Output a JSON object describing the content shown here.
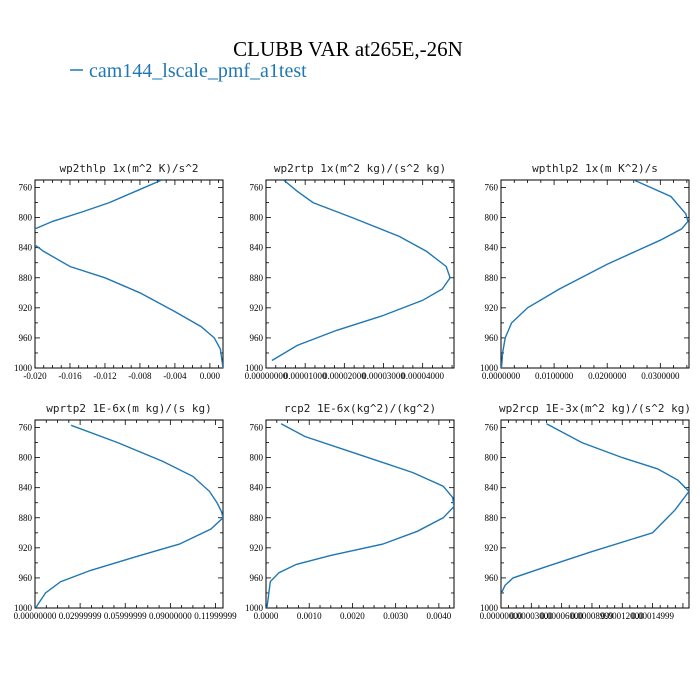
{
  "figure": {
    "title": "CLUBB VAR at265E,-26N",
    "legend_label": "cam144_lscale_pmf_a1test",
    "series_color": "#1f77b4"
  },
  "chart_data": [
    {
      "type": "line",
      "title": "wp2thlp  1x(m^2 K)/s^2",
      "xlim": [
        -0.02,
        0.0015
      ],
      "ylim": [
        1000,
        750
      ],
      "xticks": [
        -0.02,
        -0.016,
        -0.012,
        -0.008,
        -0.004,
        0.0
      ],
      "xtick_labels": [
        "-0.020",
        "-0.016",
        "-0.012",
        "-0.008",
        "-0.004",
        "0.000"
      ],
      "yticks": [
        760,
        800,
        840,
        880,
        920,
        960,
        1000
      ],
      "ytick_labels": [
        "760",
        "800",
        "840",
        "880",
        "920",
        "960",
        "1000"
      ],
      "series": [
        {
          "x": [
            -0.0055,
            -0.0085,
            -0.0115,
            -0.0145,
            -0.018,
            -0.02,
            -0.021,
            -0.019,
            -0.016,
            -0.012,
            -0.008,
            -0.004,
            -0.001,
            0.0005,
            0.0012,
            0.0015
          ],
          "y": [
            750,
            765,
            780,
            792,
            805,
            815,
            828,
            845,
            865,
            880,
            900,
            925,
            945,
            960,
            975,
            1000
          ]
        }
      ]
    },
    {
      "type": "line",
      "title": "wp2rtp  1x(m^2 kg)/(s^2 kg)",
      "xlim": [
        0.0,
        4.8e-05
      ],
      "ylim": [
        1000,
        750
      ],
      "xticks": [
        0.0,
        1e-05,
        2e-05,
        3e-05,
        4e-05
      ],
      "xtick_labels": [
        "0.00000000",
        "0.00001000",
        "0.00002000",
        "0.00003000",
        "0.00004000"
      ],
      "yticks": [
        760,
        800,
        840,
        880,
        920,
        960,
        1000
      ],
      "ytick_labels": [
        "760",
        "800",
        "840",
        "880",
        "920",
        "960",
        "1000"
      ],
      "series": [
        {
          "x": [
            4.5e-06,
            8e-06,
            1.2e-05,
            2.2e-05,
            3.4e-05,
            4.1e-05,
            4.6e-05,
            4.7e-05,
            4.5e-05,
            4e-05,
            3e-05,
            1.8e-05,
            8e-06,
            1.5e-06
          ],
          "y": [
            750,
            765,
            780,
            800,
            825,
            845,
            865,
            880,
            895,
            910,
            930,
            950,
            970,
            990
          ]
        }
      ]
    },
    {
      "type": "line",
      "title": "wpthlp2  1x(m K^2)/s",
      "xlim": [
        0.0,
        0.0354
      ],
      "ylim": [
        1000,
        750
      ],
      "xticks": [
        0.0,
        0.01,
        0.02,
        0.03
      ],
      "xtick_labels": [
        "0.0000000",
        "0.0100000",
        "0.0200000",
        "0.0300000"
      ],
      "yticks": [
        760,
        800,
        840,
        880,
        920,
        960,
        1000
      ],
      "ytick_labels": [
        "760",
        "800",
        "840",
        "880",
        "920",
        "960",
        "1000"
      ],
      "series": [
        {
          "x": [
            0.025,
            0.032,
            0.0348,
            0.0352,
            0.034,
            0.03,
            0.02,
            0.011,
            0.005,
            0.002,
            0.0008,
            0.0003,
            0.0001
          ],
          "y": [
            750,
            772,
            795,
            805,
            815,
            830,
            862,
            895,
            920,
            940,
            960,
            980,
            1000
          ]
        }
      ]
    },
    {
      "type": "line",
      "title": "wprtp2  1E-6x(m kg)/(s kg)",
      "xlim": [
        0.0,
        0.125
      ],
      "ylim": [
        1000,
        750
      ],
      "xticks": [
        0.0,
        0.03,
        0.06,
        0.09,
        0.12
      ],
      "xtick_labels": [
        "0.00000000",
        "0.02999999",
        "0.05999999",
        "0.09000000",
        "0.11999999"
      ],
      "yticks": [
        760,
        800,
        840,
        880,
        920,
        960,
        1000
      ],
      "ytick_labels": [
        "760",
        "800",
        "840",
        "880",
        "920",
        "960",
        "1000"
      ],
      "series": [
        {
          "x": [
            0.024,
            0.055,
            0.085,
            0.105,
            0.116,
            0.121,
            0.124,
            0.125,
            0.117,
            0.096,
            0.07,
            0.037,
            0.017,
            0.007,
            0.002,
            0.0005
          ],
          "y": [
            757,
            780,
            805,
            825,
            845,
            860,
            872,
            880,
            895,
            915,
            930,
            950,
            965,
            980,
            995,
            1000
          ]
        }
      ]
    },
    {
      "type": "line",
      "title": "rcp2  1E-6x(kg^2)/(kg^2)",
      "xlim": [
        0.0,
        0.00435
      ],
      "ylim": [
        1000,
        750
      ],
      "xticks": [
        0.0,
        0.001,
        0.002,
        0.003,
        0.004
      ],
      "xtick_labels": [
        "0.0000",
        "0.0010",
        "0.0020",
        "0.0030",
        "0.0040"
      ],
      "yticks": [
        760,
        800,
        840,
        880,
        920,
        960,
        1000
      ],
      "ytick_labels": [
        "760",
        "800",
        "840",
        "880",
        "920",
        "960",
        "1000"
      ],
      "series": [
        {
          "x": [
            0.00035,
            0.0009,
            0.0021,
            0.0034,
            0.0041,
            0.00432,
            0.00435,
            0.0041,
            0.0035,
            0.0027,
            0.0015,
            0.0007,
            0.0003,
            0.0001,
            2e-05
          ],
          "y": [
            755,
            772,
            795,
            820,
            838,
            853,
            865,
            880,
            898,
            915,
            930,
            942,
            953,
            965,
            1000
          ]
        }
      ]
    },
    {
      "type": "line",
      "title": "wp2rcp  1E-3x(m^2 kg)/(s^2 kg)",
      "xlim": [
        0.0,
        0.000186
      ],
      "ylim": [
        1000,
        750
      ],
      "xticks": [
        0.0,
        3e-05,
        6e-05,
        9e-05,
        0.00012,
        0.00015
      ],
      "xtick_labels": [
        "0.00000000",
        "0.00003000",
        "0.00006000",
        "0.00008999",
        "0.00012000",
        "0.00014999"
      ],
      "yticks": [
        760,
        800,
        840,
        880,
        920,
        960,
        1000
      ],
      "ytick_labels": [
        "760",
        "800",
        "840",
        "880",
        "920",
        "960",
        "1000"
      ],
      "series": [
        {
          "x": [
            4.5e-05,
            8e-05,
            0.00012,
            0.000155,
            0.000175,
            0.000186,
            0.000172,
            0.00015,
            9e-05,
            4.5e-05,
            1.2e-05,
            4e-06,
            5e-07
          ],
          "y": [
            755,
            780,
            800,
            815,
            830,
            845,
            870,
            900,
            925,
            945,
            960,
            970,
            980
          ]
        }
      ]
    }
  ]
}
